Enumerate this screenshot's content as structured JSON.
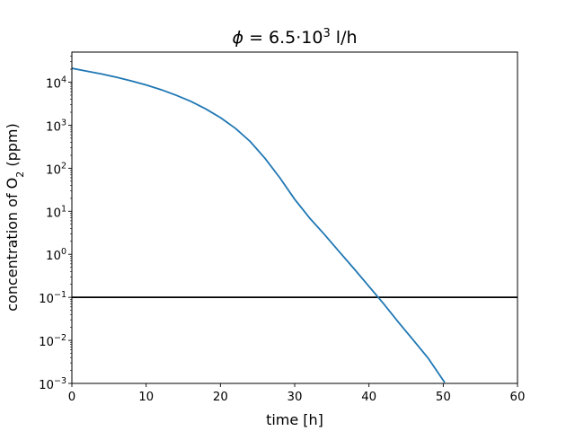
{
  "chart_data": {
    "type": "line",
    "title": {
      "symbol": "ϕ",
      "text": " = 6.5·10",
      "sup": "3",
      "suffix": " l/h"
    },
    "xlabel": "time [h]",
    "ylabel": {
      "text": "concentration of O",
      "sub": "2",
      "suffix": " (ppm)"
    },
    "xlim": [
      0,
      60
    ],
    "ylim": [
      0.001,
      50000
    ],
    "yscale": "log",
    "grid": false,
    "xticks": [
      0,
      10,
      20,
      30,
      40,
      50,
      60
    ],
    "yticks": [
      {
        "base": "10",
        "exp": "4",
        "value": 10000
      },
      {
        "base": "10",
        "exp": "3",
        "value": 1000
      },
      {
        "base": "10",
        "exp": "2",
        "value": 100
      },
      {
        "base": "10",
        "exp": "1",
        "value": 10
      },
      {
        "base": "10",
        "exp": "0",
        "value": 1
      },
      {
        "base": "10",
        "exp": "−1",
        "value": 0.1
      },
      {
        "base": "10",
        "exp": "−2",
        "value": 0.01
      },
      {
        "base": "10",
        "exp": "−3",
        "value": 0.001
      }
    ],
    "series": [
      {
        "color": "#1f77b4",
        "x": [
          0,
          2,
          4,
          6,
          8,
          10,
          12,
          14,
          16,
          18,
          20,
          22,
          24,
          26,
          28,
          30,
          32,
          34,
          36,
          38,
          40,
          42,
          44,
          46,
          48,
          50.2
        ],
        "y": [
          21000,
          18000,
          15500,
          13000,
          10700,
          8600,
          6700,
          5000,
          3600,
          2400,
          1500,
          850,
          420,
          170,
          60,
          19,
          7,
          2.9,
          1.15,
          0.46,
          0.18,
          0.07,
          0.026,
          0.01,
          0.0038,
          0.00105
        ]
      }
    ],
    "hline": {
      "y": 0.1,
      "color": "#000000"
    }
  }
}
